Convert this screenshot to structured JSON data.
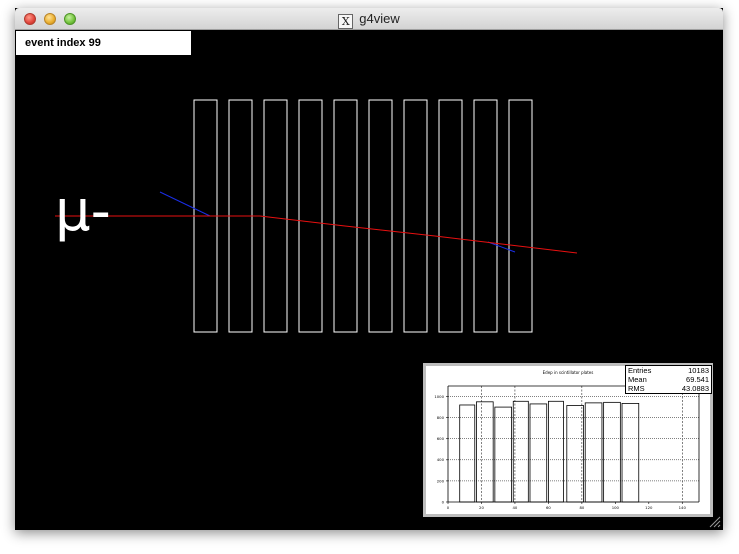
{
  "window": {
    "title": "g4view",
    "app_icon": "x11-icon"
  },
  "event_label": "event index 99",
  "particle_label": "μ-",
  "detector": {
    "plate_count": 10
  },
  "colors": {
    "track": "#e81010",
    "secondary": "#1a2ee6",
    "plates": "#ffffff",
    "background": "#000000"
  },
  "histogram": {
    "title": "Edep in scintillator plates",
    "stats": [
      {
        "label": "Entries",
        "value": "10183"
      },
      {
        "label": "Mean",
        "value": "69.541"
      },
      {
        "label": "RMS",
        "value": "43.0883"
      }
    ]
  },
  "chart_data": {
    "type": "bar",
    "title": "Edep in scintillator plates",
    "x": [
      0,
      20,
      40,
      60,
      80,
      100,
      120,
      140
    ],
    "xlim": [
      0,
      150
    ],
    "ylim": [
      0,
      1100
    ],
    "yticks": [
      0,
      200,
      400,
      600,
      800,
      1000
    ],
    "xticks": [
      0,
      20,
      40,
      60,
      80,
      100,
      120,
      140
    ],
    "bins": [
      {
        "lo": 7,
        "hi": 16,
        "value": 920
      },
      {
        "lo": 17,
        "hi": 27,
        "value": 950
      },
      {
        "lo": 28,
        "hi": 38,
        "value": 900
      },
      {
        "lo": 39,
        "hi": 48,
        "value": 955
      },
      {
        "lo": 49,
        "hi": 59,
        "value": 930
      },
      {
        "lo": 60,
        "hi": 69,
        "value": 955
      },
      {
        "lo": 71,
        "hi": 81,
        "value": 915
      },
      {
        "lo": 82,
        "hi": 92,
        "value": 940
      },
      {
        "lo": 93,
        "hi": 103,
        "value": 945
      },
      {
        "lo": 104,
        "hi": 114,
        "value": 935
      }
    ],
    "dotted_verticals": [
      20,
      40,
      80,
      140
    ],
    "grid": true
  }
}
